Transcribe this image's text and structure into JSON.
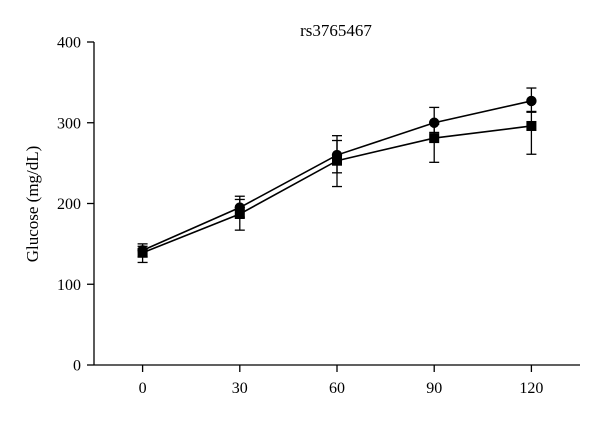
{
  "chart_data": {
    "type": "line",
    "title": "rs3765467",
    "xlabel": "",
    "ylabel": "Glucose (mg/dL)",
    "x": [
      0,
      30,
      60,
      90,
      120
    ],
    "x_tick_labels": [
      "0",
      "30",
      "60",
      "90",
      "120"
    ],
    "y_ticks": [
      0,
      100,
      200,
      300,
      400
    ],
    "y_tick_labels": [
      "0",
      "100",
      "200",
      "300",
      "400"
    ],
    "xlim": [
      -15,
      135
    ],
    "ylim": [
      0,
      400
    ],
    "grid": false,
    "series": [
      {
        "marker": "circle",
        "color": "#000000",
        "values": [
          142,
          195,
          260,
          300,
          327
        ],
        "err_low": [
          8,
          12,
          22,
          12,
          14
        ],
        "err_high": [
          8,
          14,
          24,
          19,
          16
        ]
      },
      {
        "marker": "square",
        "color": "#000000",
        "values": [
          139,
          187,
          253,
          281,
          296
        ],
        "err_low": [
          12,
          20,
          32,
          30,
          35
        ],
        "err_high": [
          8,
          18,
          25,
          17,
          18
        ]
      }
    ]
  }
}
